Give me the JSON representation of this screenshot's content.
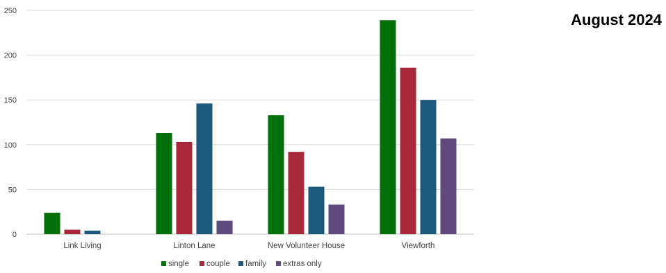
{
  "heading": "August 2024",
  "chart_data": {
    "type": "bar",
    "categories": [
      "Link Living",
      "Linton Lane",
      "New Volunteer House",
      "Viewforth"
    ],
    "series": [
      {
        "name": "single",
        "color": "#00700a",
        "values": [
          24,
          113,
          133,
          239
        ]
      },
      {
        "name": "couple",
        "color": "#a8283a",
        "values": [
          5,
          103,
          92,
          186
        ]
      },
      {
        "name": "family",
        "color": "#1b5a7c",
        "values": [
          4,
          146,
          53,
          150
        ]
      },
      {
        "name": "extras only",
        "color": "#5e4a7c",
        "values": [
          0,
          15,
          33,
          107
        ]
      }
    ],
    "yticks": [
      0,
      50,
      100,
      150,
      200,
      250
    ],
    "ylim": [
      0,
      250
    ],
    "grid": true,
    "legend": "bottom"
  }
}
